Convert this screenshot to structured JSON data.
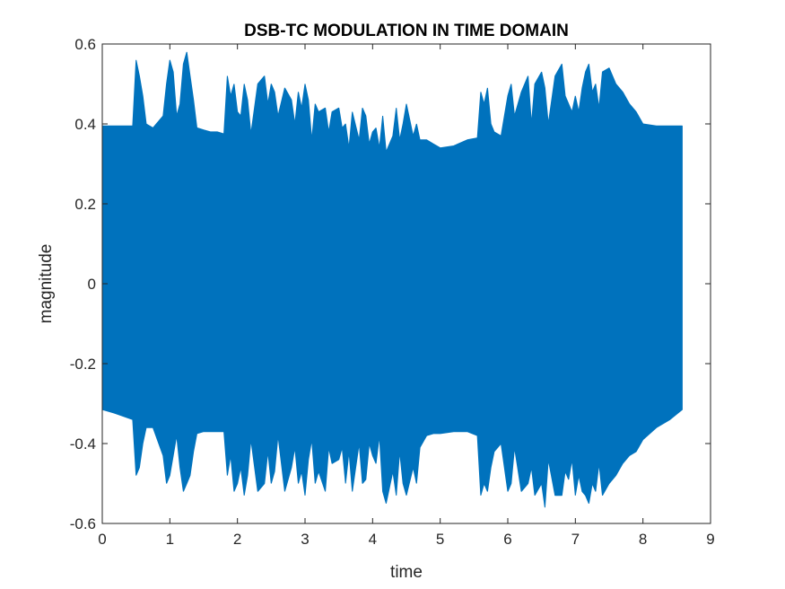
{
  "chart_data": {
    "type": "area",
    "title": "DSB-TC MODULATION IN TIME DOMAIN",
    "xlabel": "time",
    "ylabel": "magnitude",
    "xlim": [
      0,
      9
    ],
    "ylim": [
      -0.6,
      0.6
    ],
    "xticks": [
      0,
      1,
      2,
      3,
      4,
      5,
      6,
      7,
      8,
      9
    ],
    "yticks": [
      -0.6,
      -0.4,
      -0.2,
      0,
      0.2,
      0.4,
      0.6
    ],
    "xtick_labels": [
      "0",
      "1",
      "2",
      "3",
      "4",
      "5",
      "6",
      "7",
      "8",
      "9"
    ],
    "ytick_labels": [
      "-0.6",
      "-0.4",
      "-0.2",
      "0",
      "0.2",
      "0.4",
      "0.6"
    ],
    "grid": false,
    "box": true,
    "series": [
      {
        "color": "#0072BD",
        "x": [
          0,
          0.2,
          0.45,
          0.5,
          0.55,
          0.6,
          0.65,
          0.75,
          0.9,
          0.95,
          1.0,
          1.05,
          1.1,
          1.15,
          1.2,
          1.25,
          1.3,
          1.35,
          1.4,
          1.5,
          1.6,
          1.7,
          1.8,
          1.85,
          1.9,
          1.95,
          2.0,
          2.05,
          2.1,
          2.15,
          2.2,
          2.3,
          2.4,
          2.45,
          2.5,
          2.55,
          2.6,
          2.7,
          2.8,
          2.85,
          2.9,
          2.95,
          3.0,
          3.05,
          3.1,
          3.15,
          3.2,
          3.3,
          3.35,
          3.4,
          3.5,
          3.55,
          3.6,
          3.65,
          3.7,
          3.8,
          3.85,
          3.9,
          3.95,
          4.0,
          4.05,
          4.1,
          4.15,
          4.2,
          4.3,
          4.35,
          4.4,
          4.45,
          4.5,
          4.6,
          4.65,
          4.7,
          4.8,
          4.9,
          5.0,
          5.2,
          5.4,
          5.55,
          5.6,
          5.65,
          5.7,
          5.75,
          5.8,
          5.9,
          6.0,
          6.05,
          6.1,
          6.2,
          6.3,
          6.35,
          6.4,
          6.5,
          6.55,
          6.6,
          6.7,
          6.8,
          6.85,
          6.9,
          6.95,
          7.0,
          7.05,
          7.1,
          7.15,
          7.2,
          7.25,
          7.3,
          7.35,
          7.4,
          7.5,
          7.6,
          7.7,
          7.8,
          7.9,
          8.0,
          8.2,
          8.4,
          8.58
        ],
        "upper_envelope": [
          0.395,
          0.395,
          0.395,
          0.56,
          0.52,
          0.47,
          0.4,
          0.39,
          0.42,
          0.5,
          0.56,
          0.53,
          0.42,
          0.45,
          0.55,
          0.58,
          0.52,
          0.46,
          0.39,
          0.385,
          0.38,
          0.38,
          0.375,
          0.52,
          0.47,
          0.5,
          0.43,
          0.42,
          0.5,
          0.46,
          0.375,
          0.5,
          0.52,
          0.45,
          0.5,
          0.48,
          0.42,
          0.49,
          0.46,
          0.4,
          0.48,
          0.44,
          0.5,
          0.46,
          0.36,
          0.45,
          0.43,
          0.44,
          0.38,
          0.43,
          0.44,
          0.39,
          0.4,
          0.34,
          0.43,
          0.36,
          0.44,
          0.42,
          0.35,
          0.38,
          0.39,
          0.34,
          0.42,
          0.33,
          0.37,
          0.44,
          0.36,
          0.4,
          0.45,
          0.37,
          0.4,
          0.36,
          0.36,
          0.35,
          0.34,
          0.345,
          0.36,
          0.365,
          0.48,
          0.45,
          0.49,
          0.4,
          0.38,
          0.37,
          0.47,
          0.5,
          0.42,
          0.48,
          0.52,
          0.4,
          0.5,
          0.53,
          0.49,
          0.4,
          0.52,
          0.55,
          0.47,
          0.45,
          0.43,
          0.47,
          0.43,
          0.49,
          0.53,
          0.55,
          0.48,
          0.5,
          0.44,
          0.53,
          0.54,
          0.5,
          0.48,
          0.45,
          0.43,
          0.4,
          0.395,
          0.395,
          0.395
        ],
        "lower_envelope": [
          -0.315,
          -0.325,
          -0.34,
          -0.48,
          -0.46,
          -0.4,
          -0.36,
          -0.36,
          -0.43,
          -0.5,
          -0.48,
          -0.43,
          -0.38,
          -0.46,
          -0.52,
          -0.5,
          -0.48,
          -0.42,
          -0.375,
          -0.37,
          -0.37,
          -0.37,
          -0.37,
          -0.48,
          -0.43,
          -0.52,
          -0.5,
          -0.46,
          -0.53,
          -0.48,
          -0.39,
          -0.52,
          -0.5,
          -0.42,
          -0.5,
          -0.47,
          -0.38,
          -0.52,
          -0.46,
          -0.41,
          -0.5,
          -0.47,
          -0.53,
          -0.44,
          -0.39,
          -0.5,
          -0.47,
          -0.52,
          -0.41,
          -0.45,
          -0.44,
          -0.41,
          -0.5,
          -0.42,
          -0.52,
          -0.4,
          -0.5,
          -0.49,
          -0.4,
          -0.43,
          -0.45,
          -0.38,
          -0.52,
          -0.55,
          -0.47,
          -0.53,
          -0.42,
          -0.5,
          -0.53,
          -0.46,
          -0.5,
          -0.41,
          -0.38,
          -0.375,
          -0.375,
          -0.37,
          -0.37,
          -0.38,
          -0.53,
          -0.5,
          -0.52,
          -0.46,
          -0.42,
          -0.4,
          -0.52,
          -0.5,
          -0.41,
          -0.52,
          -0.5,
          -0.46,
          -0.53,
          -0.5,
          -0.56,
          -0.44,
          -0.53,
          -0.53,
          -0.47,
          -0.49,
          -0.44,
          -0.53,
          -0.48,
          -0.52,
          -0.53,
          -0.55,
          -0.5,
          -0.52,
          -0.45,
          -0.53,
          -0.5,
          -0.48,
          -0.45,
          -0.43,
          -0.42,
          -0.39,
          -0.36,
          -0.34,
          -0.315
        ]
      }
    ]
  }
}
